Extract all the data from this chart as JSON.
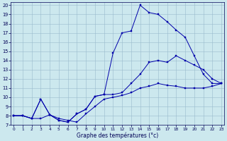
{
  "xlabel": "Graphe des températures (°c)",
  "xlim": [
    0,
    23
  ],
  "ylim": [
    7,
    20
  ],
  "yticks": [
    7,
    8,
    9,
    10,
    11,
    12,
    13,
    14,
    15,
    16,
    17,
    18,
    19,
    20
  ],
  "xticks": [
    0,
    1,
    2,
    3,
    4,
    5,
    6,
    7,
    8,
    9,
    10,
    11,
    12,
    13,
    14,
    15,
    16,
    17,
    18,
    19,
    20,
    21,
    22,
    23
  ],
  "background_color": "#cce8ee",
  "grid_color": "#99bbcc",
  "line_color": "#0000aa",
  "curve_max": [
    8.0,
    8.0,
    7.7,
    9.8,
    8.1,
    7.5,
    7.3,
    8.2,
    8.7,
    10.1,
    10.3,
    14.8,
    17.0,
    17.2,
    20.0,
    19.2,
    19.0,
    18.2,
    17.3,
    16.5,
    14.5,
    12.5,
    11.5,
    11.5
  ],
  "curve_mid": [
    8.0,
    8.0,
    7.7,
    9.8,
    8.1,
    7.5,
    7.3,
    8.2,
    8.7,
    10.1,
    10.3,
    10.3,
    10.5,
    11.5,
    12.5,
    13.8,
    14.0,
    13.8,
    14.5,
    14.0,
    13.5,
    13.0,
    12.0,
    11.5
  ],
  "curve_min": [
    8.0,
    8.0,
    7.7,
    7.7,
    8.1,
    7.7,
    7.5,
    7.3,
    8.2,
    9.0,
    9.8,
    10.0,
    10.2,
    10.5,
    11.0,
    11.2,
    11.5,
    11.3,
    11.2,
    11.0,
    11.0,
    11.0,
    11.2,
    11.5
  ]
}
